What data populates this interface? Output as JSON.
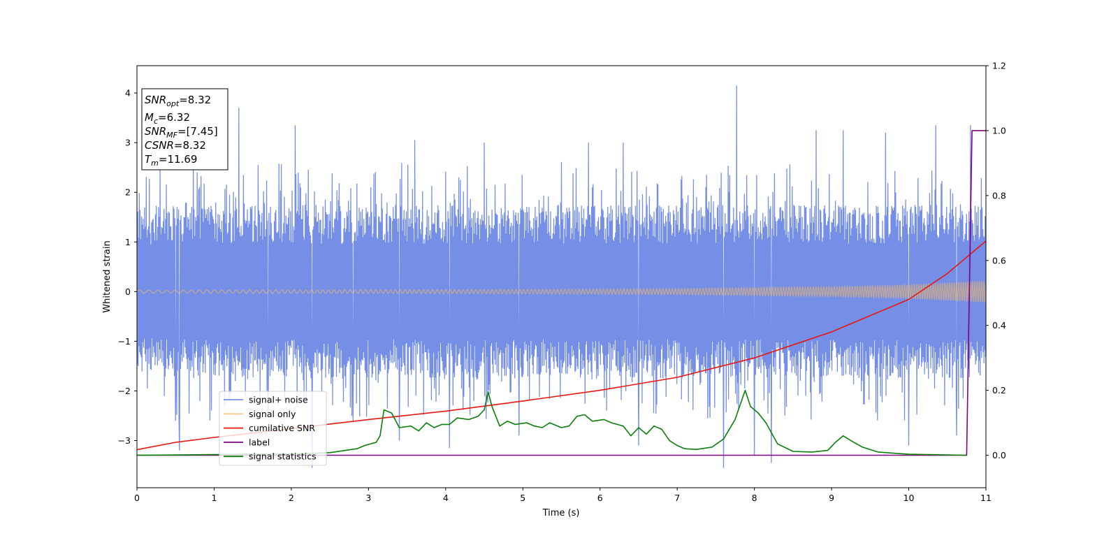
{
  "chart_data": {
    "type": "line",
    "xlabel": "Time (s)",
    "ylabel": "Whitened strain",
    "xlim": [
      0,
      11
    ],
    "ylim": [
      -3.95,
      4.55
    ],
    "y2lim": [
      -0.1,
      1.2
    ],
    "x_ticks": [
      "0",
      "1",
      "2",
      "3",
      "4",
      "5",
      "6",
      "7",
      "8",
      "9",
      "10",
      "11"
    ],
    "y_ticks": [
      "−3",
      "−2",
      "−1",
      "0",
      "1",
      "2",
      "3",
      "4"
    ],
    "y2_ticks": [
      "0.0",
      "0.2",
      "0.4",
      "0.6",
      "0.8",
      "1.0",
      "1.2"
    ],
    "grid": false,
    "legend_position": "lower-left",
    "annotation": [
      {
        "base": "SNR",
        "sub": "opt",
        "rest": "=8.32"
      },
      {
        "base": "M",
        "sub": "c",
        "rest": "=6.32"
      },
      {
        "base": "SNR",
        "sub": "MF",
        "rest": "=[7.45]"
      },
      {
        "base": "CSNR",
        "sub": "",
        "rest": "=8.32"
      },
      {
        "base": "T",
        "sub": "m",
        "rest": "=11.69"
      }
    ],
    "noise_spikes": [
      [
        0.3,
        2.6
      ],
      [
        0.5,
        -2.6
      ],
      [
        0.55,
        -3.2
      ],
      [
        0.73,
        2.6
      ],
      [
        0.78,
        2.4
      ],
      [
        1.32,
        3.7
      ],
      [
        1.7,
        -2.4
      ],
      [
        2.05,
        3.35
      ],
      [
        2.27,
        -3.55
      ],
      [
        2.8,
        -2.6
      ],
      [
        3.4,
        -3.0
      ],
      [
        3.6,
        3.05
      ],
      [
        4.05,
        -3.15
      ],
      [
        4.5,
        3.0
      ],
      [
        4.95,
        -2.9
      ],
      [
        5.85,
        3.0
      ],
      [
        6.3,
        3.0
      ],
      [
        6.5,
        -3.1
      ],
      [
        7.6,
        -3.55
      ],
      [
        7.77,
        4.15
      ],
      [
        8.0,
        -3.3
      ],
      [
        8.22,
        -3.45
      ],
      [
        8.8,
        3.25
      ],
      [
        9.15,
        3.25
      ],
      [
        9.7,
        3.2
      ],
      [
        10.0,
        -3.1
      ],
      [
        10.35,
        3.35
      ],
      [
        10.62,
        -2.9
      ],
      [
        10.8,
        3.35
      ]
    ],
    "series": [
      {
        "name": "signal+ noise",
        "color": "#6a86e4",
        "axis": "left",
        "envelope_upper": [
          [
            0,
            1.7
          ],
          [
            1,
            1.75
          ],
          [
            2,
            1.75
          ],
          [
            3,
            1.75
          ],
          [
            4,
            1.75
          ],
          [
            5,
            1.75
          ],
          [
            6,
            1.75
          ],
          [
            7,
            1.75
          ],
          [
            8,
            1.75
          ],
          [
            9,
            1.75
          ],
          [
            10,
            1.75
          ],
          [
            11,
            1.8
          ]
        ],
        "envelope_lower": [
          [
            0,
            -1.7
          ],
          [
            1,
            -1.75
          ],
          [
            2,
            -1.75
          ],
          [
            3,
            -1.75
          ],
          [
            4,
            -1.75
          ],
          [
            5,
            -1.75
          ],
          [
            6,
            -1.75
          ],
          [
            7,
            -1.75
          ],
          [
            8,
            -1.75
          ],
          [
            9,
            -1.75
          ],
          [
            10,
            -1.75
          ],
          [
            11,
            -1.8
          ]
        ]
      },
      {
        "name": "signal only",
        "color": "#f5b860",
        "axis": "left",
        "amplitude": [
          [
            0,
            0.03
          ],
          [
            2,
            0.035
          ],
          [
            4,
            0.04
          ],
          [
            6,
            0.05
          ],
          [
            7,
            0.06
          ],
          [
            8,
            0.08
          ],
          [
            9,
            0.1
          ],
          [
            10,
            0.14
          ],
          [
            10.5,
            0.18
          ],
          [
            11,
            0.22
          ]
        ]
      },
      {
        "name": "cumilative SNR",
        "color": "#e8160e",
        "axis": "right",
        "points": [
          [
            0,
            0.017
          ],
          [
            0.5,
            0.04
          ],
          [
            1,
            0.055
          ],
          [
            2,
            0.082
          ],
          [
            3,
            0.11
          ],
          [
            4,
            0.136
          ],
          [
            5,
            0.167
          ],
          [
            6,
            0.2
          ],
          [
            7,
            0.24
          ],
          [
            8,
            0.3
          ],
          [
            9,
            0.38
          ],
          [
            10,
            0.48
          ],
          [
            10.5,
            0.56
          ],
          [
            11,
            0.66
          ]
        ]
      },
      {
        "name": "label",
        "color": "#7d047f",
        "axis": "right",
        "points": [
          [
            0,
            0
          ],
          [
            10.75,
            0
          ],
          [
            10.82,
            1.0
          ],
          [
            11,
            1.0
          ]
        ]
      },
      {
        "name": "signal statistics",
        "color": "#0a7f0a",
        "axis": "right",
        "points": [
          [
            0,
            0.0
          ],
          [
            1.0,
            0.002
          ],
          [
            2.0,
            0.004
          ],
          [
            2.5,
            0.008
          ],
          [
            2.7,
            0.015
          ],
          [
            2.85,
            0.02
          ],
          [
            2.95,
            0.03
          ],
          [
            3.1,
            0.04
          ],
          [
            3.15,
            0.06
          ],
          [
            3.2,
            0.14
          ],
          [
            3.3,
            0.13
          ],
          [
            3.4,
            0.085
          ],
          [
            3.55,
            0.09
          ],
          [
            3.65,
            0.075
          ],
          [
            3.75,
            0.1
          ],
          [
            3.85,
            0.085
          ],
          [
            3.95,
            0.095
          ],
          [
            4.05,
            0.095
          ],
          [
            4.15,
            0.115
          ],
          [
            4.3,
            0.11
          ],
          [
            4.42,
            0.12
          ],
          [
            4.5,
            0.14
          ],
          [
            4.55,
            0.195
          ],
          [
            4.6,
            0.15
          ],
          [
            4.7,
            0.09
          ],
          [
            4.8,
            0.105
          ],
          [
            4.9,
            0.095
          ],
          [
            5.05,
            0.1
          ],
          [
            5.15,
            0.09
          ],
          [
            5.25,
            0.085
          ],
          [
            5.35,
            0.1
          ],
          [
            5.5,
            0.085
          ],
          [
            5.6,
            0.09
          ],
          [
            5.7,
            0.12
          ],
          [
            5.8,
            0.125
          ],
          [
            5.9,
            0.105
          ],
          [
            6.05,
            0.11
          ],
          [
            6.15,
            0.1
          ],
          [
            6.3,
            0.09
          ],
          [
            6.4,
            0.06
          ],
          [
            6.5,
            0.085
          ],
          [
            6.6,
            0.065
          ],
          [
            6.7,
            0.09
          ],
          [
            6.8,
            0.08
          ],
          [
            6.9,
            0.045
          ],
          [
            7.0,
            0.03
          ],
          [
            7.1,
            0.02
          ],
          [
            7.25,
            0.018
          ],
          [
            7.45,
            0.025
          ],
          [
            7.6,
            0.05
          ],
          [
            7.75,
            0.11
          ],
          [
            7.88,
            0.2
          ],
          [
            7.95,
            0.15
          ],
          [
            8.05,
            0.13
          ],
          [
            8.15,
            0.1
          ],
          [
            8.3,
            0.035
          ],
          [
            8.5,
            0.012
          ],
          [
            8.75,
            0.01
          ],
          [
            8.95,
            0.015
          ],
          [
            9.05,
            0.04
          ],
          [
            9.15,
            0.06
          ],
          [
            9.25,
            0.045
          ],
          [
            9.4,
            0.025
          ],
          [
            9.6,
            0.01
          ],
          [
            10.0,
            0.003
          ],
          [
            10.75,
            0.0
          ]
        ]
      }
    ]
  }
}
